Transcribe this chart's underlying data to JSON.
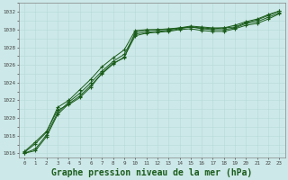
{
  "background_color": "#cce8e8",
  "grid_color": "#b8d8d8",
  "line_color": "#1a5c1a",
  "xlabel": "Graphe pression niveau de la mer (hPa)",
  "xlabel_fontsize": 7,
  "xlim": [
    -0.5,
    23.5
  ],
  "ylim": [
    1015.5,
    1033.0
  ],
  "yticks": [
    1016,
    1018,
    1020,
    1022,
    1024,
    1026,
    1028,
    1030,
    1032
  ],
  "xticks": [
    0,
    1,
    2,
    3,
    4,
    5,
    6,
    7,
    8,
    9,
    10,
    11,
    12,
    13,
    14,
    15,
    16,
    17,
    18,
    19,
    20,
    21,
    22,
    23
  ],
  "series": [
    [
      1016.2,
      1017.3,
      1018.5,
      1020.9,
      1021.5,
      1022.3,
      1023.5,
      1025.1,
      1026.2,
      1026.8,
      1029.7,
      1029.9,
      1030.0,
      1030.1,
      1030.2,
      1030.3,
      1030.2,
      1030.1,
      1030.2,
      1030.3,
      1030.8,
      1031.1,
      1031.6,
      1032.1
    ],
    [
      1016.1,
      1017.1,
      1018.4,
      1021.2,
      1022.0,
      1023.2,
      1024.4,
      1025.8,
      1026.8,
      1027.7,
      1029.9,
      1030.0,
      1030.0,
      1030.0,
      1030.2,
      1030.4,
      1030.3,
      1030.2,
      1030.2,
      1030.5,
      1030.9,
      1031.2,
      1031.7,
      1032.1
    ],
    [
      1016.0,
      1016.5,
      1018.1,
      1020.6,
      1021.8,
      1022.8,
      1024.0,
      1025.3,
      1026.4,
      1027.2,
      1029.5,
      1029.7,
      1029.8,
      1029.9,
      1030.1,
      1030.3,
      1030.1,
      1030.0,
      1030.0,
      1030.2,
      1030.7,
      1030.9,
      1031.4,
      1031.9
    ],
    [
      1016.0,
      1016.3,
      1017.9,
      1020.4,
      1021.6,
      1022.5,
      1023.7,
      1025.0,
      1026.1,
      1026.9,
      1029.3,
      1029.6,
      1029.7,
      1029.8,
      1030.0,
      1030.1,
      1029.9,
      1029.8,
      1029.8,
      1030.1,
      1030.5,
      1030.7,
      1031.2,
      1031.8
    ]
  ]
}
